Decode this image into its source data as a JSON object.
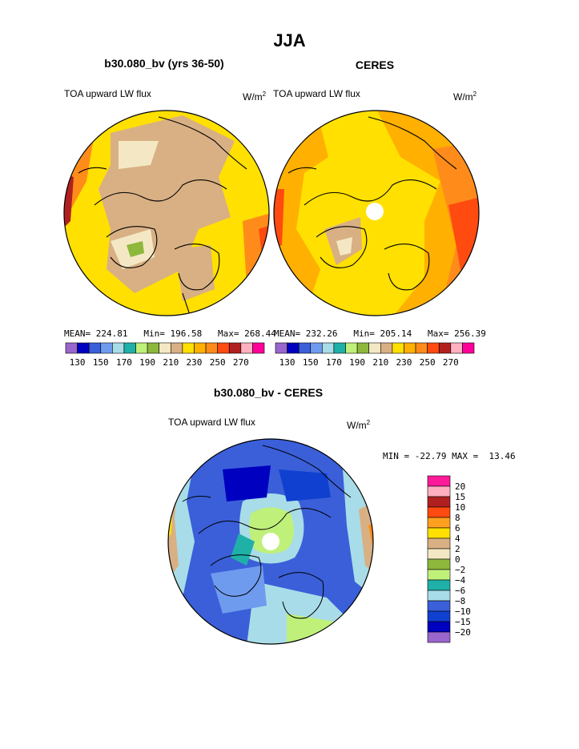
{
  "title": "JJA",
  "panels": [
    {
      "subtitle": "b30.080_bv (yrs 36-50)",
      "left_label": "TOA upward LW flux",
      "units": "W/m",
      "units_sup": "2",
      "stats": "MEAN= 224.81   Min= 196.58   Max= 268.44"
    },
    {
      "subtitle": "CERES",
      "left_label": "TOA upward LW flux",
      "units": "W/m",
      "units_sup": "2",
      "stats": "MEAN= 232.26   Min= 205.14   Max= 256.39"
    },
    {
      "subtitle": "b30.080_bv - CERES",
      "left_label": "TOA upward LW flux",
      "units": "W/m",
      "units_sup": "2",
      "stats": "MIN = -22.79 MAX =  13.46"
    }
  ],
  "colorbar_abs": {
    "colors": [
      "#9966cc",
      "#0000c0",
      "#3a5fd9",
      "#6f9bef",
      "#a8dce8",
      "#1fb0a8",
      "#bff07a",
      "#8db83c",
      "#f4e8c4",
      "#d8b084",
      "#ffe000",
      "#ffb000",
      "#ff8c1a",
      "#ff4a10",
      "#b02020",
      "#ffb0c0",
      "#ff0099"
    ],
    "labels": [
      "130",
      "150",
      "170",
      "190",
      "210",
      "230",
      "250",
      "270"
    ]
  },
  "colorbar_diff": {
    "colors": [
      "#ff1a9a",
      "#ffb0c0",
      "#b02020",
      "#ff4a10",
      "#ffa020",
      "#ffe000",
      "#d8b084",
      "#f4e8c4",
      "#8db83c",
      "#bff07a",
      "#1fb0a8",
      "#a8dce8",
      "#3a5fd9",
      "#1040d0",
      "#0000c0",
      "#9966cc"
    ],
    "labels": [
      "20",
      "15",
      "10",
      "8",
      "6",
      "4",
      "2",
      "0",
      "−2",
      "−4",
      "−6",
      "−8",
      "−10",
      "−15",
      "−20"
    ]
  }
}
